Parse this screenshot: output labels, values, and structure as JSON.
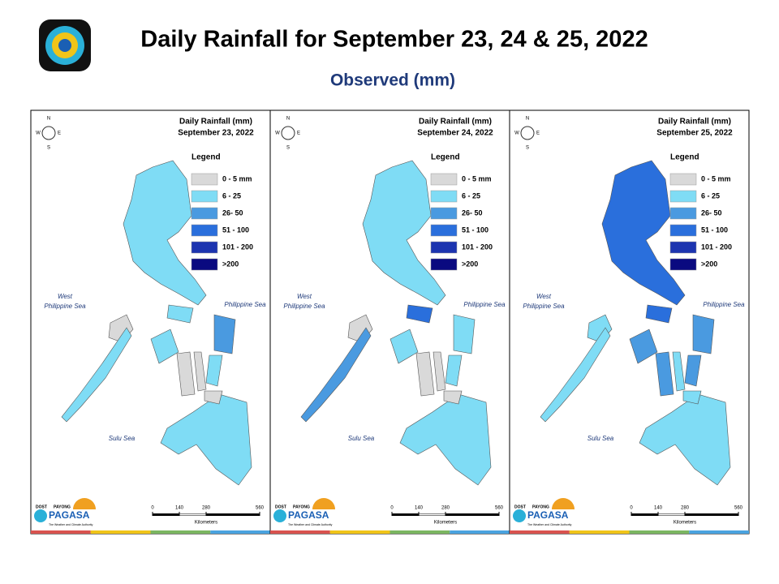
{
  "header": {
    "title": "Daily Rainfall for September 23, 24 & 25, 2022",
    "subtitle": "Observed (mm)"
  },
  "panels": [
    {
      "heading": "Daily Rainfall (mm)",
      "date": "September 23, 2022"
    },
    {
      "heading": "Daily Rainfall (mm)",
      "date": "September 24, 2022"
    },
    {
      "heading": "Daily Rainfall (mm)",
      "date": "September 25, 2022"
    }
  ],
  "legend": {
    "title": "Legend",
    "items": [
      {
        "label": "0 - 5 mm",
        "color": "#d9d9d9"
      },
      {
        "label": "6 - 25",
        "color": "#7fdcf5"
      },
      {
        "label": "26- 50",
        "color": "#4a9ae0"
      },
      {
        "label": "51 - 100",
        "color": "#2a6fdc"
      },
      {
        "label": "101 - 200",
        "color": "#1c34b0"
      },
      {
        "label": ">200",
        "color": "#0a0a80"
      }
    ]
  },
  "seas": {
    "west": [
      "West",
      "Philippine Sea"
    ],
    "east": "Philippine Sea",
    "sulu": "Sulu Sea"
  },
  "compass": [
    "N",
    "E",
    "S",
    "W"
  ],
  "scale": {
    "ticks": [
      0,
      140,
      280,
      560
    ],
    "unit": "Kilometers"
  },
  "logo": {
    "dost": "DOST",
    "payong": "PAYONG",
    "name": "PAGASA",
    "tagline": "The Weather and Climate Authority"
  }
}
